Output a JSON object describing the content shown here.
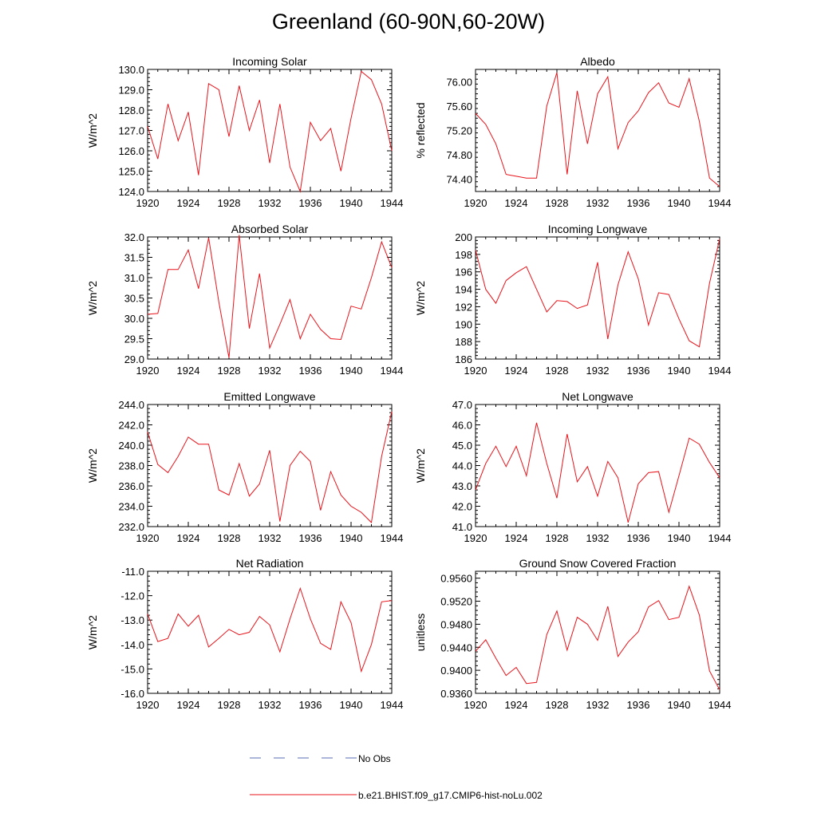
{
  "title": "Greenland (60-90N,60-20W)",
  "colors": {
    "model": "#e8141b",
    "obs": "#5a6bb5",
    "axis": "#000000"
  },
  "legend": {
    "obs_label": "No Obs",
    "model_label": "b.e21.BHIST.f09_g17.CMIP6-hist-noLu.002"
  },
  "chart_data": [
    {
      "type": "line",
      "title": "Incoming Solar",
      "ylabel": "W/m^2",
      "xlim": [
        1920,
        1944
      ],
      "ylim": [
        124,
        130
      ],
      "xticks": [
        1920,
        1924,
        1928,
        1932,
        1936,
        1940,
        1944
      ],
      "xtick_labels": [
        "1920",
        "1924",
        "1928",
        "1932",
        "1936",
        "1940",
        "1944"
      ],
      "yticks": [
        124,
        125,
        126,
        127,
        128,
        129,
        130
      ],
      "ytick_labels": [
        "124.0",
        "125.0",
        "126.0",
        "127.0",
        "128.0",
        "129.0",
        "130.0"
      ],
      "x": [
        1920,
        1921,
        1922,
        1923,
        1924,
        1925,
        1926,
        1927,
        1928,
        1929,
        1930,
        1931,
        1932,
        1933,
        1934,
        1935,
        1936,
        1937,
        1938,
        1939,
        1940,
        1941,
        1942,
        1943,
        1944
      ],
      "series": [
        {
          "values": [
            127.2,
            125.6,
            128.3,
            126.5,
            127.9,
            124.8,
            129.3,
            129.0,
            126.7,
            129.2,
            127.0,
            128.5,
            125.4,
            128.3,
            125.2,
            124.0,
            127.4,
            126.5,
            127.1,
            125.0,
            127.6,
            129.9,
            129.5,
            128.3,
            126.0
          ]
        }
      ]
    },
    {
      "type": "line",
      "title": "Albedo",
      "ylabel": "% reflected",
      "xlim": [
        1920,
        1944
      ],
      "ylim": [
        74.2,
        76.2
      ],
      "xticks": [
        1920,
        1924,
        1928,
        1932,
        1936,
        1940,
        1944
      ],
      "xtick_labels": [
        "1920",
        "1924",
        "1928",
        "1932",
        "1936",
        "1940",
        "1944"
      ],
      "yticks": [
        74.4,
        74.8,
        75.2,
        75.6,
        76.0
      ],
      "ytick_labels": [
        "74.40",
        "74.80",
        "75.20",
        "75.60",
        "76.00"
      ],
      "x": [
        1920,
        1921,
        1922,
        1923,
        1924,
        1925,
        1926,
        1927,
        1928,
        1929,
        1930,
        1931,
        1932,
        1933,
        1934,
        1935,
        1936,
        1937,
        1938,
        1939,
        1940,
        1941,
        1942,
        1943,
        1944
      ],
      "series": [
        {
          "values": [
            75.48,
            75.3,
            74.98,
            74.48,
            74.45,
            74.42,
            74.42,
            75.6,
            76.15,
            74.48,
            75.85,
            74.98,
            75.8,
            76.08,
            74.9,
            75.33,
            75.52,
            75.82,
            75.98,
            75.65,
            75.58,
            76.05,
            75.35,
            74.42,
            74.28
          ]
        }
      ]
    },
    {
      "type": "line",
      "title": "Absorbed Solar",
      "ylabel": "W/m^2",
      "xlim": [
        1920,
        1944
      ],
      "ylim": [
        29,
        32
      ],
      "xticks": [
        1920,
        1924,
        1928,
        1932,
        1936,
        1940,
        1944
      ],
      "xtick_labels": [
        "1920",
        "1924",
        "1928",
        "1932",
        "1936",
        "1940",
        "1944"
      ],
      "yticks": [
        29,
        29.5,
        30,
        30.5,
        31,
        31.5,
        32
      ],
      "ytick_labels": [
        "29.0",
        "29.5",
        "30.0",
        "30.5",
        "31.0",
        "31.5",
        "32.0"
      ],
      "x": [
        1920,
        1921,
        1922,
        1923,
        1924,
        1925,
        1926,
        1927,
        1928,
        1929,
        1930,
        1931,
        1932,
        1933,
        1934,
        1935,
        1936,
        1937,
        1938,
        1939,
        1940,
        1941,
        1942,
        1943,
        1944
      ],
      "series": [
        {
          "values": [
            30.1,
            30.12,
            31.2,
            31.2,
            31.68,
            30.73,
            31.98,
            30.4,
            29.03,
            32.05,
            29.75,
            31.1,
            29.27,
            29.85,
            30.46,
            29.5,
            30.1,
            29.73,
            29.5,
            29.48,
            30.3,
            30.23,
            31.0,
            31.88,
            31.25
          ]
        }
      ]
    },
    {
      "type": "line",
      "title": "Incoming Longwave",
      "ylabel": "W/m^2",
      "xlim": [
        1920,
        1944
      ],
      "ylim": [
        186,
        200
      ],
      "xticks": [
        1920,
        1924,
        1928,
        1932,
        1936,
        1940,
        1944
      ],
      "xtick_labels": [
        "1920",
        "1924",
        "1928",
        "1932",
        "1936",
        "1940",
        "1944"
      ],
      "yticks": [
        186,
        188,
        190,
        192,
        194,
        196,
        198,
        200
      ],
      "ytick_labels": [
        "186",
        "188",
        "190",
        "192",
        "194",
        "196",
        "198",
        "200"
      ],
      "x": [
        1920,
        1921,
        1922,
        1923,
        1924,
        1925,
        1926,
        1927,
        1928,
        1929,
        1930,
        1931,
        1932,
        1933,
        1934,
        1935,
        1936,
        1937,
        1938,
        1939,
        1940,
        1941,
        1942,
        1943,
        1944
      ],
      "series": [
        {
          "values": [
            198.5,
            194.0,
            192.4,
            195.0,
            195.9,
            196.6,
            194.0,
            191.4,
            192.7,
            192.6,
            191.8,
            192.2,
            197.1,
            188.3,
            194.5,
            198.3,
            195.2,
            189.9,
            193.6,
            193.4,
            190.6,
            188.1,
            187.4,
            194.7,
            199.8
          ]
        }
      ]
    },
    {
      "type": "line",
      "title": "Emitted Longwave",
      "ylabel": "W/m^2",
      "xlim": [
        1920,
        1944
      ],
      "ylim": [
        232,
        244
      ],
      "xticks": [
        1920,
        1924,
        1928,
        1932,
        1936,
        1940,
        1944
      ],
      "xtick_labels": [
        "1920",
        "1924",
        "1928",
        "1932",
        "1936",
        "1940",
        "1944"
      ],
      "yticks": [
        232,
        234,
        236,
        238,
        240,
        242,
        244
      ],
      "ytick_labels": [
        "232.0",
        "234.0",
        "236.0",
        "238.0",
        "240.0",
        "242.0",
        "244.0"
      ],
      "x": [
        1920,
        1921,
        1922,
        1923,
        1924,
        1925,
        1926,
        1927,
        1928,
        1929,
        1930,
        1931,
        1932,
        1933,
        1934,
        1935,
        1936,
        1937,
        1938,
        1939,
        1940,
        1941,
        1942,
        1943,
        1944
      ],
      "series": [
        {
          "values": [
            241.3,
            238.1,
            237.3,
            238.9,
            240.8,
            240.1,
            240.1,
            235.6,
            235.1,
            238.2,
            235.0,
            236.2,
            239.5,
            232.5,
            238.0,
            239.4,
            238.4,
            233.6,
            237.4,
            235.1,
            234.0,
            233.4,
            232.4,
            238.9,
            243.3
          ]
        }
      ]
    },
    {
      "type": "line",
      "title": "Net Longwave",
      "ylabel": "W/m^2",
      "xlim": [
        1920,
        1944
      ],
      "ylim": [
        41,
        47
      ],
      "xticks": [
        1920,
        1924,
        1928,
        1932,
        1936,
        1940,
        1944
      ],
      "xtick_labels": [
        "1920",
        "1924",
        "1928",
        "1932",
        "1936",
        "1940",
        "1944"
      ],
      "yticks": [
        41,
        42,
        43,
        44,
        45,
        46,
        47
      ],
      "ytick_labels": [
        "41.0",
        "42.0",
        "43.0",
        "44.0",
        "45.0",
        "46.0",
        "47.0"
      ],
      "x": [
        1920,
        1921,
        1922,
        1923,
        1924,
        1925,
        1926,
        1927,
        1928,
        1929,
        1930,
        1931,
        1932,
        1933,
        1934,
        1935,
        1936,
        1937,
        1938,
        1939,
        1940,
        1941,
        1942,
        1943,
        1944
      ],
      "series": [
        {
          "values": [
            42.8,
            44.1,
            44.95,
            43.95,
            44.95,
            43.5,
            46.1,
            44.1,
            42.4,
            45.55,
            43.2,
            43.95,
            42.5,
            44.2,
            43.4,
            41.2,
            43.1,
            43.65,
            43.7,
            41.7,
            43.5,
            45.35,
            45.05,
            44.15,
            43.4
          ]
        }
      ]
    },
    {
      "type": "line",
      "title": "Net Radiation",
      "ylabel": "W/m^2",
      "xlim": [
        1920,
        1944
      ],
      "ylim": [
        -16,
        -11
      ],
      "xticks": [
        1920,
        1924,
        1928,
        1932,
        1936,
        1940,
        1944
      ],
      "xtick_labels": [
        "1920",
        "1924",
        "1928",
        "1932",
        "1936",
        "1940",
        "1944"
      ],
      "yticks": [
        -16,
        -15,
        -14,
        -13,
        -12,
        -11
      ],
      "ytick_labels": [
        "-16.0",
        "-15.0",
        "-14.0",
        "-13.0",
        "-12.0",
        "-11.0"
      ],
      "x": [
        1920,
        1921,
        1922,
        1923,
        1924,
        1925,
        1926,
        1927,
        1928,
        1929,
        1930,
        1931,
        1932,
        1933,
        1934,
        1935,
        1936,
        1937,
        1938,
        1939,
        1940,
        1941,
        1942,
        1943,
        1944
      ],
      "series": [
        {
          "values": [
            -12.75,
            -13.88,
            -13.75,
            -12.75,
            -13.25,
            -12.8,
            -14.1,
            -13.75,
            -13.38,
            -13.6,
            -13.5,
            -12.85,
            -13.2,
            -14.3,
            -12.95,
            -11.7,
            -12.95,
            -13.95,
            -14.2,
            -12.25,
            -13.1,
            -15.1,
            -14.0,
            -12.25,
            -12.2
          ]
        }
      ]
    },
    {
      "type": "line",
      "title": "Ground Snow Covered Fraction",
      "ylabel": "unitless",
      "xlim": [
        1920,
        1944
      ],
      "ylim": [
        0.936,
        0.9572
      ],
      "xticks": [
        1920,
        1924,
        1928,
        1932,
        1936,
        1940,
        1944
      ],
      "xtick_labels": [
        "1920",
        "1924",
        "1928",
        "1932",
        "1936",
        "1940",
        "1944"
      ],
      "yticks": [
        0.936,
        0.94,
        0.944,
        0.948,
        0.952,
        0.956
      ],
      "ytick_labels": [
        "0.9360",
        "0.9400",
        "0.9440",
        "0.9480",
        "0.9520",
        "0.9560"
      ],
      "x": [
        1920,
        1921,
        1922,
        1923,
        1924,
        1925,
        1926,
        1927,
        1928,
        1929,
        1930,
        1931,
        1932,
        1933,
        1934,
        1935,
        1936,
        1937,
        1938,
        1939,
        1940,
        1941,
        1942,
        1943,
        1944
      ],
      "series": [
        {
          "values": [
            0.9433,
            0.9453,
            0.9421,
            0.9391,
            0.9405,
            0.9377,
            0.9379,
            0.9462,
            0.9503,
            0.9435,
            0.9492,
            0.948,
            0.9452,
            0.9511,
            0.9424,
            0.9449,
            0.9467,
            0.951,
            0.9521,
            0.9488,
            0.9492,
            0.9546,
            0.9496,
            0.9399,
            0.9366
          ]
        }
      ]
    }
  ]
}
